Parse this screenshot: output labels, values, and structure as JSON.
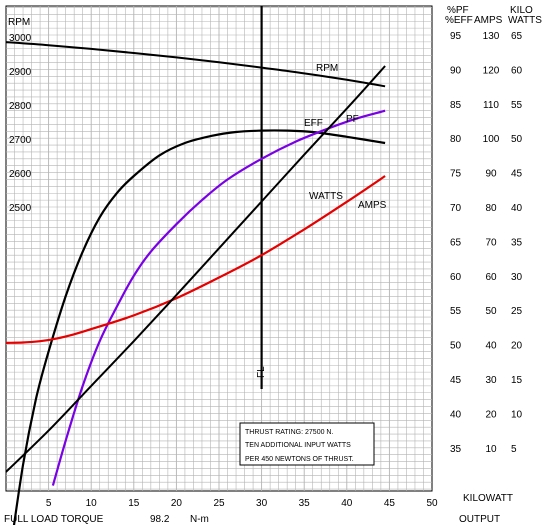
{
  "chart_data": {
    "type": "line",
    "x_axis": {
      "ticks": [
        "5",
        "10",
        "15",
        "20",
        "25",
        "30",
        "35",
        "40",
        "45",
        "50"
      ],
      "title_line1": "KILOWATT",
      "title_line2": "OUTPUT",
      "range": [
        0,
        50
      ]
    },
    "footer": {
      "label": "FULL LOAD TORQUE",
      "value": "98.2",
      "unit": "N-m"
    },
    "rpm_axis": {
      "label": "RPM",
      "ticks": [
        "3000",
        "2900",
        "2800",
        "2700",
        "2600",
        "2500"
      ]
    },
    "right_axes": {
      "headers": {
        "pf_eff_line1": "%PF",
        "pf_eff_line2": "%EFF",
        "amps": "AMPS",
        "kw_line1": "KILO",
        "kw_line2": "WATTS"
      },
      "pf_eff": [
        "95",
        "90",
        "85",
        "80",
        "75",
        "70",
        "65",
        "60",
        "55",
        "50",
        "45",
        "40",
        "35"
      ],
      "amps": [
        "130",
        "120",
        "110",
        "100",
        "90",
        "80",
        "70",
        "60",
        "50",
        "40",
        "30",
        "20",
        "10"
      ],
      "kw": [
        "65",
        "60",
        "55",
        "50",
        "45",
        "40",
        "35",
        "30",
        "25",
        "20",
        "15",
        "10",
        "5"
      ]
    },
    "full_load": {
      "x": 30,
      "label": "FL"
    },
    "note": [
      "THRUST RATING:  27500 N.",
      "TEN ADDITIONAL INPUT WATTS",
      "PER 450 NEWTONS OF THRUST."
    ],
    "grid": true,
    "series": [
      {
        "name": "RPM",
        "color": "#000000",
        "axis": "rpm",
        "x": [
          0,
          5,
          10,
          15,
          20,
          25,
          30,
          35,
          40,
          44.5
        ],
        "y": [
          2985,
          2976,
          2965,
          2953,
          2940,
          2926,
          2910,
          2893,
          2874,
          2855
        ]
      },
      {
        "name": "EFF",
        "color": "#000000",
        "axis": "pf_eff",
        "x": [
          0.5,
          2,
          3.5,
          5,
          7,
          9,
          11,
          13,
          15,
          18,
          21,
          24,
          27,
          30,
          33,
          36,
          40,
          44.5
        ],
        "y": [
          20,
          32.5,
          42,
          49,
          57,
          63.5,
          68.5,
          72,
          74.5,
          77.5,
          79.3,
          80.3,
          80.9,
          81.1,
          81.1,
          80.9,
          80.2,
          79.3
        ]
      },
      {
        "name": "PF",
        "color": "#7a00e6",
        "axis": "pf_eff",
        "x": [
          5.5,
          7,
          9,
          11,
          13,
          15,
          17,
          20,
          23,
          26,
          30,
          34,
          38,
          41,
          44.5
        ],
        "y": [
          29.5,
          36,
          44,
          50.5,
          55.5,
          60,
          63.5,
          67.5,
          71,
          74,
          77,
          79.5,
          81.5,
          82.8,
          84
        ]
      },
      {
        "name": "AMPS",
        "color": "#e60000",
        "axis": "amps",
        "x": [
          0,
          2,
          4,
          6,
          8,
          10,
          15,
          20,
          25,
          30,
          35,
          40,
          44.5
        ],
        "y": [
          40.5,
          40.6,
          41,
          41.8,
          43,
          44.5,
          48.5,
          53.5,
          59.5,
          66,
          73.5,
          81.5,
          89
        ]
      },
      {
        "name": "WATTS",
        "color": "#000000",
        "axis": "kw",
        "x": [
          0,
          5,
          10,
          15,
          20,
          25,
          30,
          35,
          40,
          44.5
        ],
        "y": [
          1.5,
          7.5,
          14,
          20.5,
          27.2,
          34,
          40.8,
          47.6,
          54.3,
          60.5
        ]
      }
    ]
  }
}
